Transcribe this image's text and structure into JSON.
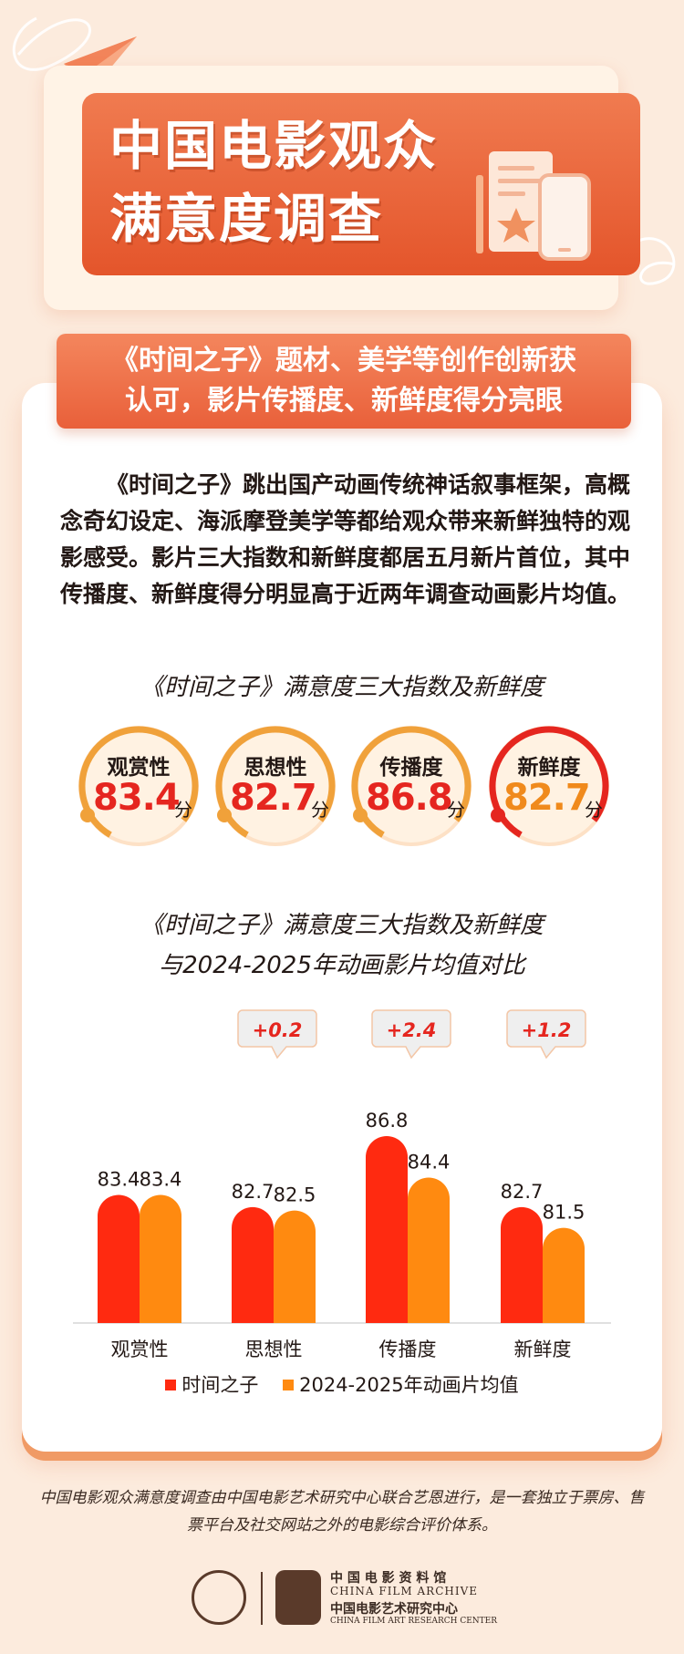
{
  "header": {
    "title": "中国电影观众\n满意度调查"
  },
  "subtitle": "《时间之子》题材、美学等创作创新获\n认可，影片传播度、新鲜度得分亮眼",
  "intro": "《时间之子》跳出国产动画传统神话叙事框架，高概念奇幻设定、海派摩登美学等都给观众带来新鲜独特的观影感受。影片三大指数和新鲜度都居五月新片首位，其中传播度、新鲜度得分明显高于近两年调查动画影片均值。",
  "scores_title": "《时间之子》满意度三大指数及新鲜度",
  "scores": [
    {
      "label": "观赏性",
      "value": "83.4",
      "unit": "分",
      "color": "#e5261f"
    },
    {
      "label": "思想性",
      "value": "82.7",
      "unit": "分",
      "color": "#e5261f"
    },
    {
      "label": "传播度",
      "value": "86.8",
      "unit": "分",
      "color": "#e5261f"
    },
    {
      "label": "新鲜度",
      "value": "82.7",
      "unit": "分",
      "color": "#f08a1c"
    }
  ],
  "chart_data": {
    "type": "bar",
    "title": "《时间之子》满意度三大指数及新鲜度\n与2024-2025年动画影片均值对比",
    "categories": [
      "观赏性",
      "思想性",
      "传播度",
      "新鲜度"
    ],
    "series": [
      {
        "name": "时间之子",
        "values": [
          83.4,
          82.7,
          86.8,
          82.7
        ],
        "color": "#ff2a10"
      },
      {
        "name": "2024-2025年动画片均值",
        "values": [
          83.4,
          82.5,
          84.4,
          81.5
        ],
        "color": "#ff8a10"
      }
    ],
    "value_labels": [
      [
        "83.4",
        "83.4"
      ],
      [
        "82.7",
        "82.5"
      ],
      [
        "86.8",
        "84.4"
      ],
      [
        "82.7",
        "81.5"
      ]
    ],
    "annotations": [
      null,
      "+0.2",
      "+2.4",
      "+1.2"
    ],
    "legend_position": "bottom",
    "grid": false
  },
  "footer": {
    "note": "中国电影观众满意度调查由中国电影艺术研究中心联合艺恩进行，是一套独立于票房、售票平台及社交网站之外的电影综合评价体系。",
    "org1_cn": "中 国 电 影 资 料 馆",
    "org1_en": "CHINA FILM ARCHIVE",
    "org2_cn": "中国电影艺术研究中心",
    "org2_en": "CHINA FILM ART RESEARCH CENTER",
    "seal_text": "中国电影资料馆 CHINA FILM ARCHIVE"
  },
  "colors": {
    "accent": "#e9603a",
    "series1": "#ff2a10",
    "series2": "#ff8a10",
    "background": "#fcebdd"
  }
}
